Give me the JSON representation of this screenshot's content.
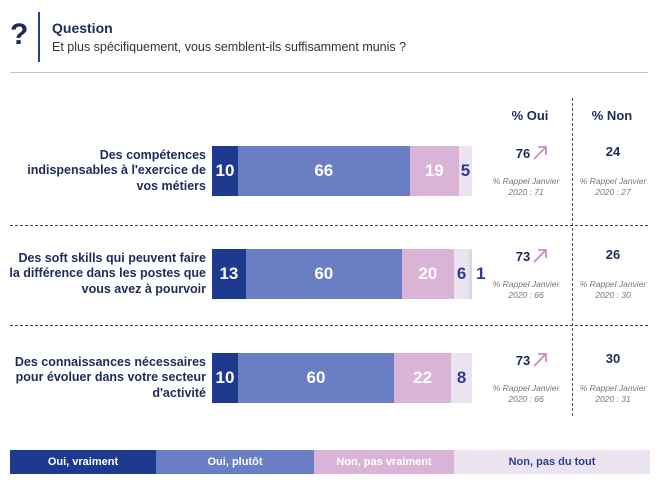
{
  "header": {
    "icon": "question-mark-icon",
    "icon_glyph": "?",
    "title": "Question",
    "question": "Et plus spécifiquement, vous semblent-ils suffisamment munis ?"
  },
  "columns": {
    "oui": "% Oui",
    "non": "% Non"
  },
  "colors": {
    "oui_vraiment": "#1e3a8f",
    "oui_plutot": "#6a7fc3",
    "non_pas_vraiment": "#d9b4d6",
    "non_pas_du_tout": "#ece3f0",
    "arrow": "#c98cc6"
  },
  "chart_data": {
    "type": "bar",
    "orientation": "horizontal-stacked",
    "categories": [
      "Des compétences indispensables à l'exercice de vos métiers",
      "Des soft skills qui peuvent faire la différence dans les postes que vous avez à pourvoir",
      "Des connaissances nécessaires pour évoluer dans votre secteur d'activité"
    ],
    "series": [
      {
        "name": "Oui, vraiment",
        "values": [
          10,
          13,
          10
        ]
      },
      {
        "name": "Oui, plutôt",
        "values": [
          66,
          60,
          60
        ]
      },
      {
        "name": "Non, pas vraiment",
        "values": [
          19,
          20,
          22
        ]
      },
      {
        "name": "Non, pas du tout",
        "values": [
          5,
          6,
          8
        ]
      },
      {
        "name": "",
        "values": [
          0,
          1,
          0
        ]
      }
    ],
    "oui_total": [
      "76",
      "73",
      "73"
    ],
    "non_total": [
      "24",
      "26",
      "30"
    ],
    "oui_rappel": [
      "% Rappel Janvier 2020 : 71",
      "% Rappel Janvier 2020 : 66",
      "% Rappel Janvier 2020 : 66"
    ],
    "non_rappel": [
      "% Rappel Janvier 2020 : 27",
      "% Rappel Janvier 2020 : 30",
      "% Rappel Janvier 2020 : 31"
    ],
    "legend": [
      "Oui, vraiment",
      "Oui, plutôt",
      "Non, pas vraiment",
      "Non, pas du tout"
    ],
    "legend_position": "bottom"
  }
}
